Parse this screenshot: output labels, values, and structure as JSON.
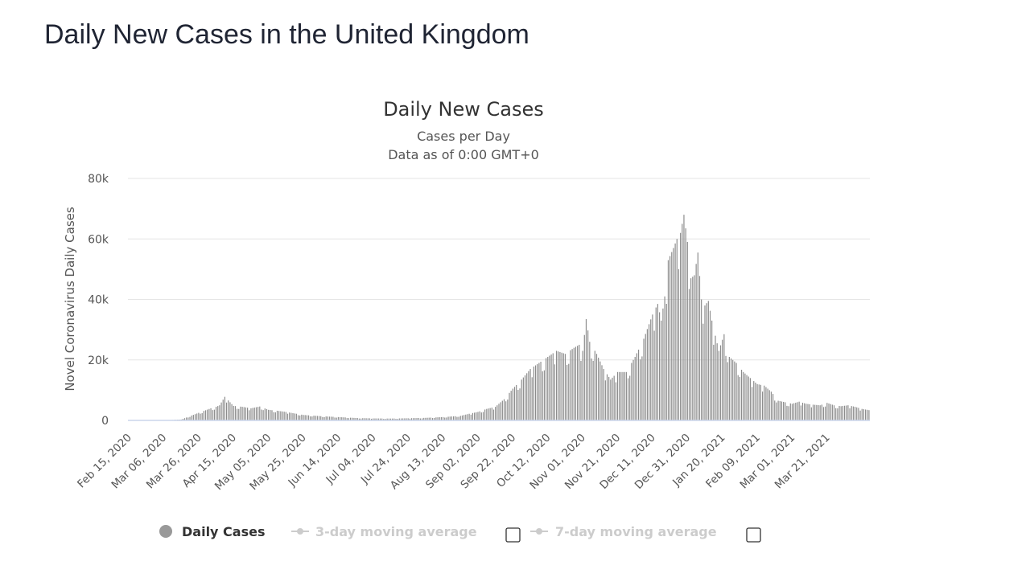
{
  "page": {
    "title": "Daily New Cases in the United Kingdom"
  },
  "colors": {
    "bar": "#8c8c8c",
    "grid": "#e6e6e6",
    "axis": "#ccd6eb",
    "legend_active": "#333333",
    "legend_inactive": "#cccccc",
    "legend_marker": "#999999"
  },
  "chart_data": {
    "type": "bar",
    "title": "Daily New Cases",
    "subtitle": "Cases per Day",
    "subtitle2": "Data as of 0:00 GMT+0",
    "xlabel": "",
    "ylabel": "Novel Coronavirus Daily Cases",
    "ylim": [
      0,
      80000
    ],
    "y_ticks": [
      {
        "value": 0,
        "label": "0"
      },
      {
        "value": 20000,
        "label": "20k"
      },
      {
        "value": 40000,
        "label": "40k"
      },
      {
        "value": 60000,
        "label": "60k"
      },
      {
        "value": 80000,
        "label": "80k"
      }
    ],
    "start_date": "2020-02-15",
    "day_count": 425,
    "x_tick_labels": [
      "Feb 15, 2020",
      "Mar 06, 2020",
      "Mar 26, 2020",
      "Apr 15, 2020",
      "May 05, 2020",
      "May 25, 2020",
      "Jun 14, 2020",
      "Jul 04, 2020",
      "Jul 24, 2020",
      "Aug 13, 2020",
      "Sep 02, 2020",
      "Sep 22, 2020",
      "Oct 12, 2020",
      "Nov 01, 2020",
      "Nov 21, 2020",
      "Dec 11, 2020",
      "Dec 31, 2020",
      "Jan 20, 2021",
      "Feb 09, 2021",
      "Mar 01, 2021",
      "Mar 21, 2021"
    ],
    "x_tick_interval_days": 20,
    "series": [
      {
        "name": "Daily Cases",
        "approximate_daily_values_by_interpolation": [
          [
            0,
            0
          ],
          [
            20,
            10
          ],
          [
            30,
            300
          ],
          [
            40,
            2500
          ],
          [
            47,
            4000
          ],
          [
            50,
            4500
          ],
          [
            52,
            5000
          ],
          [
            55,
            7800
          ],
          [
            60,
            4800
          ],
          [
            65,
            4500
          ],
          [
            70,
            4000
          ],
          [
            75,
            4600
          ],
          [
            80,
            3500
          ],
          [
            85,
            3200
          ],
          [
            90,
            2800
          ],
          [
            100,
            1800
          ],
          [
            110,
            1400
          ],
          [
            120,
            1100
          ],
          [
            130,
            800
          ],
          [
            140,
            650
          ],
          [
            150,
            600
          ],
          [
            160,
            700
          ],
          [
            170,
            850
          ],
          [
            180,
            1100
          ],
          [
            190,
            1500
          ],
          [
            195,
            2200
          ],
          [
            200,
            2800
          ],
          [
            205,
            3800
          ],
          [
            210,
            4500
          ],
          [
            215,
            7000
          ],
          [
            220,
            10500
          ],
          [
            225,
            13500
          ],
          [
            230,
            17000
          ],
          [
            235,
            19000
          ],
          [
            240,
            21000
          ],
          [
            245,
            23000
          ],
          [
            250,
            22000
          ],
          [
            255,
            24000
          ],
          [
            258,
            25000
          ],
          [
            260,
            23000
          ],
          [
            262,
            33500
          ],
          [
            264,
            26000
          ],
          [
            268,
            22000
          ],
          [
            272,
            17000
          ],
          [
            276,
            13500
          ],
          [
            280,
            16000
          ],
          [
            285,
            16000
          ],
          [
            290,
            21000
          ],
          [
            295,
            27000
          ],
          [
            300,
            35000
          ],
          [
            303,
            38500
          ],
          [
            305,
            33000
          ],
          [
            307,
            41000
          ],
          [
            309,
            53000
          ],
          [
            312,
            57000
          ],
          [
            314,
            60000
          ],
          [
            316,
            62000
          ],
          [
            318,
            68000
          ],
          [
            320,
            59000
          ],
          [
            322,
            47000
          ],
          [
            324,
            48000
          ],
          [
            326,
            55500
          ],
          [
            328,
            40000
          ],
          [
            330,
            38000
          ],
          [
            332,
            39500
          ],
          [
            334,
            33000
          ],
          [
            336,
            28000
          ],
          [
            338,
            23000
          ],
          [
            341,
            28500
          ],
          [
            344,
            21000
          ],
          [
            348,
            19000
          ],
          [
            352,
            16000
          ],
          [
            356,
            14000
          ],
          [
            360,
            12000
          ],
          [
            364,
            11500
          ],
          [
            368,
            9500
          ],
          [
            372,
            6500
          ],
          [
            376,
            6000
          ],
          [
            380,
            5500
          ],
          [
            384,
            6200
          ],
          [
            388,
            5500
          ],
          [
            392,
            5200
          ],
          [
            396,
            5000
          ],
          [
            400,
            5800
          ],
          [
            404,
            5000
          ],
          [
            408,
            4700
          ],
          [
            412,
            5000
          ],
          [
            416,
            4500
          ],
          [
            420,
            3800
          ],
          [
            424,
            3400
          ]
        ]
      }
    ],
    "legend": {
      "placement": "bottom-center",
      "items": [
        {
          "label": "Daily Cases",
          "active": true,
          "marker": "circle"
        },
        {
          "label": "3-day moving average",
          "active": false,
          "marker": "line-dot",
          "checkbox": true,
          "checked": false
        },
        {
          "label": "7-day moving average",
          "active": false,
          "marker": "line-dot",
          "checkbox": true,
          "checked": false
        }
      ]
    }
  }
}
